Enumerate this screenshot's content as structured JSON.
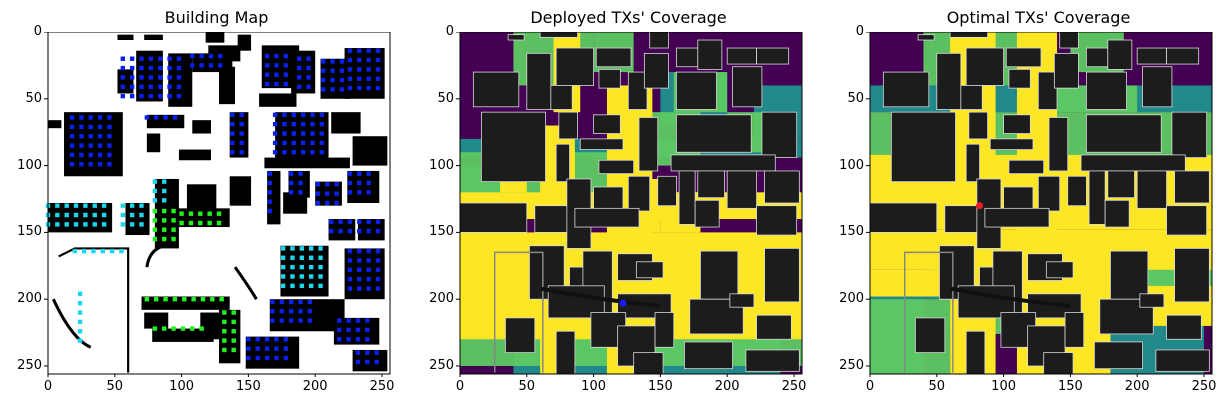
{
  "figure": {
    "panels": [
      {
        "title": "Building Map"
      },
      {
        "title": "Deployed TXs' Coverage"
      },
      {
        "title": "Optimal TXs' Coverage"
      }
    ]
  },
  "chart_data": [
    {
      "type": "heatmap",
      "title": "Building Map",
      "xlim": [
        0,
        255
      ],
      "ylim": [
        255,
        0
      ],
      "xticks": [
        0,
        50,
        100,
        150,
        200,
        250
      ],
      "yticks": [
        0,
        50,
        100,
        150,
        200,
        250
      ],
      "xlabel": "",
      "ylabel": "",
      "colors": {
        "background": "#ffffff",
        "building": "#000000",
        "dot_blue": "#0a1ff0",
        "dot_cyan": "#1ad6ef",
        "dot_green": "#1ef51e"
      }
    },
    {
      "type": "heatmap",
      "title": "Deployed TXs' Coverage",
      "xlim": [
        0,
        255
      ],
      "ylim": [
        255,
        0
      ],
      "xticks": [
        0,
        50,
        100,
        150,
        200,
        250
      ],
      "yticks": [
        0,
        50,
        100,
        150,
        200,
        250
      ],
      "xlabel": "",
      "ylabel": "",
      "tx_markers": [
        {
          "x": 122,
          "y": 203,
          "color": "#1a1aff"
        }
      ],
      "colors": {
        "low": "#440154",
        "mid_low": "#21908d",
        "mid_high": "#5ec962",
        "high": "#fde725",
        "building": "#1c1c1c"
      }
    },
    {
      "type": "heatmap",
      "title": "Optimal TXs' Coverage",
      "xlim": [
        0,
        255
      ],
      "ylim": [
        255,
        0
      ],
      "xticks": [
        0,
        50,
        100,
        150,
        200,
        250
      ],
      "yticks": [
        0,
        50,
        100,
        150,
        200,
        250
      ],
      "xlabel": "",
      "ylabel": "",
      "tx_markers": [
        {
          "x": 82,
          "y": 130,
          "color": "#e8202a"
        }
      ],
      "colors": {
        "low": "#440154",
        "mid_low": "#21908d",
        "mid_high": "#5ec962",
        "high": "#fde725",
        "building": "#1c1c1c"
      }
    }
  ]
}
